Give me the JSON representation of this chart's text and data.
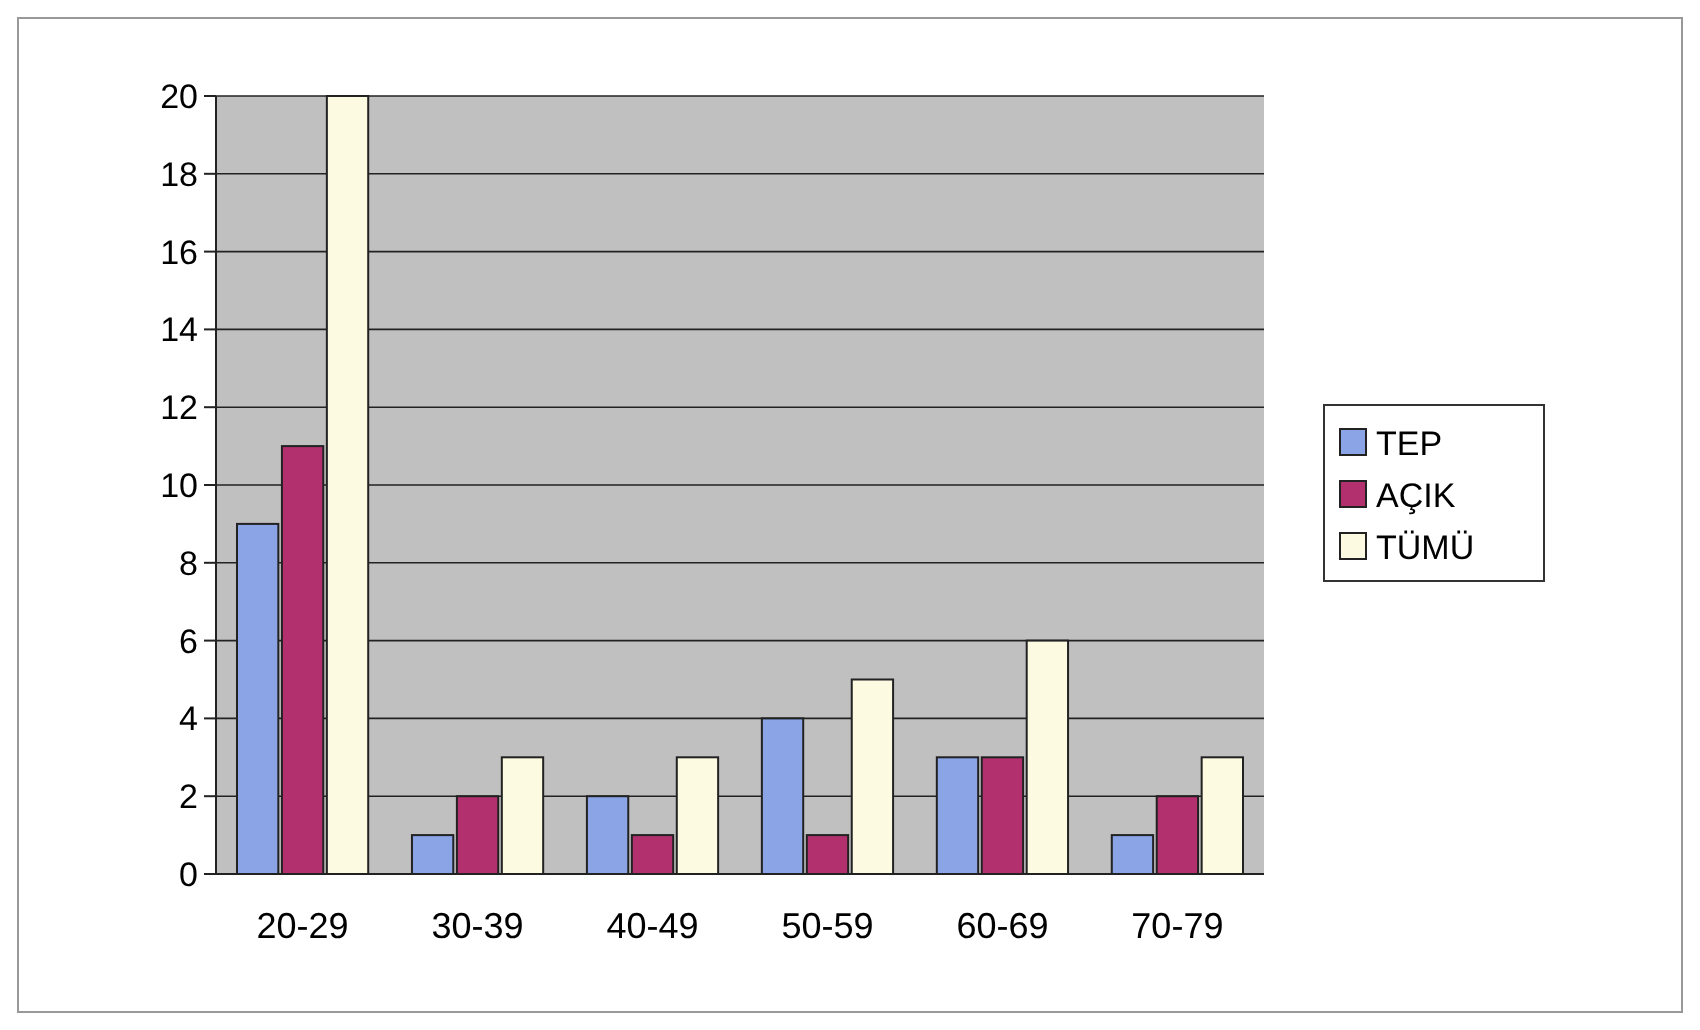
{
  "chart_data": {
    "type": "bar",
    "categories": [
      "20-29",
      "30-39",
      "40-49",
      "50-59",
      "60-69",
      "70-79"
    ],
    "series": [
      {
        "name": "TEP",
        "color": "#8aa4e6",
        "values": [
          9,
          1,
          2,
          4,
          3,
          1
        ]
      },
      {
        "name": "AÇIK",
        "color": "#b3306e",
        "values": [
          11,
          2,
          1,
          1,
          3,
          2
        ]
      },
      {
        "name": "TÜMÜ",
        "color": "#fcfbe2",
        "values": [
          20,
          3,
          3,
          5,
          6,
          3
        ]
      }
    ],
    "ylim": [
      0,
      20
    ],
    "yticks": [
      0,
      2,
      4,
      6,
      8,
      10,
      12,
      14,
      16,
      18,
      20
    ],
    "grid": "y",
    "legend": "right"
  }
}
